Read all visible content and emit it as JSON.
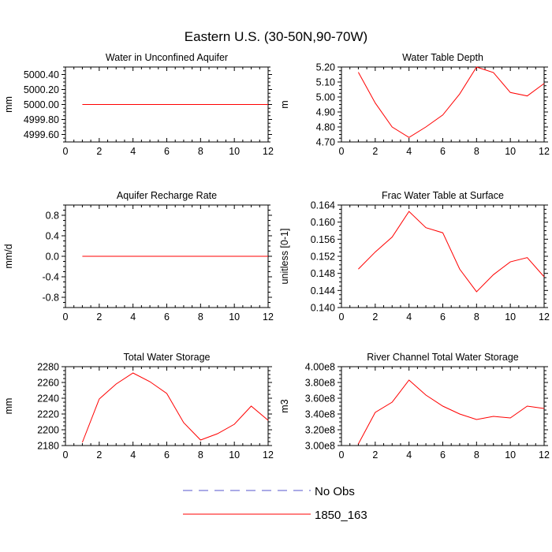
{
  "title": "Eastern U.S. (30-50N,90-70W)",
  "legend": [
    {
      "label": "No Obs",
      "color": "#5555cc",
      "dash": true
    },
    {
      "label": "1850_163",
      "color": "#ff0000",
      "dash": false
    }
  ],
  "chart_data": [
    {
      "type": "line",
      "title": "Water in Unconfined Aquifer",
      "ylabel": "mm",
      "xlim": [
        0,
        12
      ],
      "ylim": [
        4999.5,
        5000.5
      ],
      "xticks": [
        0,
        2,
        4,
        6,
        8,
        10,
        12
      ],
      "yticks": [
        4999.6,
        4999.8,
        5000.0,
        5000.2,
        5000.4
      ],
      "ytick_labels": [
        "4999.60",
        "4999.80",
        "5000.00",
        "5000.20",
        "5000.40"
      ],
      "series": [
        {
          "name": "1850_163",
          "x": [
            1,
            2,
            3,
            4,
            5,
            6,
            7,
            8,
            9,
            10,
            11,
            12
          ],
          "values": [
            5000,
            5000,
            5000,
            5000,
            5000,
            5000,
            5000,
            5000,
            5000,
            5000,
            5000,
            5000
          ]
        }
      ]
    },
    {
      "type": "line",
      "title": "Water Table Depth",
      "ylabel": "m",
      "xlim": [
        0,
        12
      ],
      "ylim": [
        4.7,
        5.2
      ],
      "xticks": [
        0,
        2,
        4,
        6,
        8,
        10,
        12
      ],
      "yticks": [
        4.7,
        4.8,
        4.9,
        5.0,
        5.1,
        5.2
      ],
      "ytick_labels": [
        "4.70",
        "4.80",
        "4.90",
        "5.00",
        "5.10",
        "5.20"
      ],
      "series": [
        {
          "name": "1850_163",
          "x": [
            1,
            2,
            3,
            4,
            5,
            6,
            7,
            8,
            9,
            10,
            11,
            12
          ],
          "values": [
            5.165,
            4.96,
            4.8,
            4.73,
            4.8,
            4.88,
            5.02,
            5.2,
            5.163,
            5.03,
            5.007,
            5.09
          ]
        }
      ]
    },
    {
      "type": "line",
      "title": "Aquifer Recharge Rate",
      "ylabel": "mm/d",
      "xlim": [
        0,
        12
      ],
      "ylim": [
        -1.0,
        1.0
      ],
      "xticks": [
        0,
        2,
        4,
        6,
        8,
        10,
        12
      ],
      "yticks": [
        -0.8,
        -0.4,
        0.0,
        0.4,
        0.8
      ],
      "ytick_labels": [
        "-0.8",
        "-0.4",
        "0.0",
        "0.4",
        "0.8"
      ],
      "series": [
        {
          "name": "1850_163",
          "x": [
            1,
            2,
            3,
            4,
            5,
            6,
            7,
            8,
            9,
            10,
            11,
            12
          ],
          "values": [
            0,
            0,
            0,
            0,
            0,
            0,
            0,
            0,
            0,
            0,
            0,
            0
          ]
        }
      ]
    },
    {
      "type": "line",
      "title": "Frac Water Table at Surface",
      "ylabel": "unitless [0-1]",
      "xlim": [
        0,
        12
      ],
      "ylim": [
        0.14,
        0.164
      ],
      "xticks": [
        0,
        2,
        4,
        6,
        8,
        10,
        12
      ],
      "yticks": [
        0.14,
        0.144,
        0.148,
        0.152,
        0.156,
        0.16,
        0.164
      ],
      "ytick_labels": [
        "0.140",
        "0.144",
        "0.148",
        "0.152",
        "0.156",
        "0.160",
        "0.164"
      ],
      "series": [
        {
          "name": "1850_163",
          "x": [
            1,
            2,
            3,
            4,
            5,
            6,
            7,
            8,
            9,
            10,
            11,
            12
          ],
          "values": [
            0.149,
            0.153,
            0.1565,
            0.1625,
            0.1587,
            0.1575,
            0.149,
            0.1437,
            0.1477,
            0.1507,
            0.1517,
            0.1472
          ]
        }
      ]
    },
    {
      "type": "line",
      "title": "Total Water Storage",
      "ylabel": "mm",
      "xlim": [
        0,
        12
      ],
      "ylim": [
        2180,
        2280
      ],
      "xticks": [
        0,
        2,
        4,
        6,
        8,
        10,
        12
      ],
      "yticks": [
        2180,
        2200,
        2220,
        2240,
        2260,
        2280
      ],
      "ytick_labels": [
        "2180",
        "2200",
        "2220",
        "2240",
        "2260",
        "2280"
      ],
      "series": [
        {
          "name": "1850_163",
          "x": [
            1,
            2,
            3,
            4,
            5,
            6,
            7,
            8,
            9,
            10,
            11,
            12
          ],
          "values": [
            2184,
            2239,
            2258,
            2272,
            2261,
            2246,
            2209,
            2187,
            2195,
            2207,
            2230,
            2212
          ]
        }
      ]
    },
    {
      "type": "line",
      "title": "River Channel Total Water Storage",
      "ylabel": "m3",
      "xlim": [
        0,
        12
      ],
      "ylim": [
        300000000,
        400000000
      ],
      "xticks": [
        0,
        2,
        4,
        6,
        8,
        10,
        12
      ],
      "yticks": [
        300000000,
        320000000,
        340000000,
        360000000,
        380000000,
        400000000
      ],
      "ytick_labels": [
        "3.00e8",
        "3.20e8",
        "3.40e8",
        "3.60e8",
        "3.80e8",
        "4.00e8"
      ],
      "series": [
        {
          "name": "1850_163",
          "x": [
            1,
            2,
            3,
            4,
            5,
            6,
            7,
            8,
            9,
            10,
            11,
            12
          ],
          "values": [
            302000000,
            342000000,
            355000000,
            383000000,
            364000000,
            350000000,
            340000000,
            333000000,
            337000000,
            335000000,
            350000000,
            347000000
          ]
        }
      ]
    }
  ]
}
